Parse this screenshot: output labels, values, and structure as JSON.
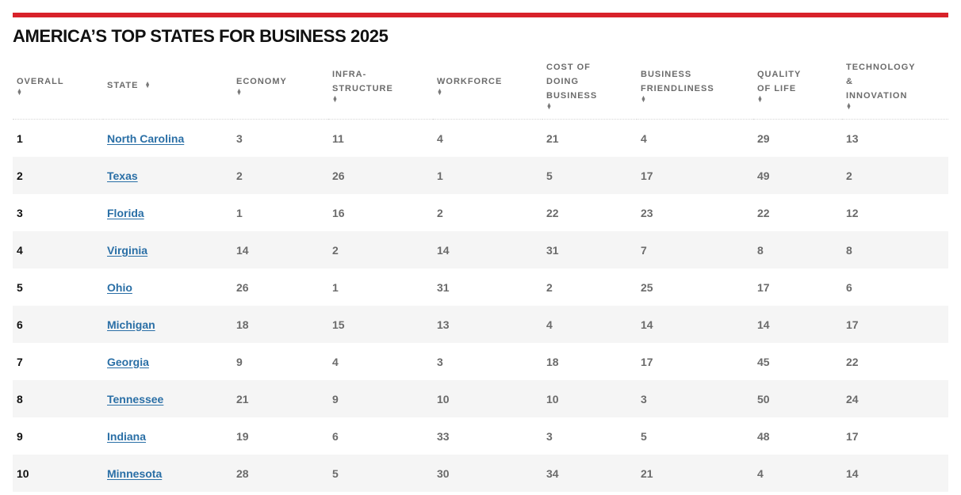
{
  "page": {
    "title": "AMERICA’S TOP STATES FOR BUSINESS 2025",
    "accent_color": "#d8222a",
    "link_color": "#2a6fa6"
  },
  "table": {
    "headers": {
      "overall": [
        "OVERALL"
      ],
      "state": [
        "STATE"
      ],
      "economy": [
        "ECONOMY"
      ],
      "infrastructure": [
        "INFRA-",
        "STRUCTURE"
      ],
      "workforce": [
        "WORKFORCE"
      ],
      "cost": [
        "COST OF",
        "DOING",
        "BUSINESS"
      ],
      "friendliness": [
        "BUSINESS",
        "FRIENDLINESS"
      ],
      "quality": [
        "QUALITY",
        "OF LIFE"
      ],
      "technology": [
        "TECHNOLOGY",
        "&",
        "INNOVATION"
      ]
    },
    "sort_icon": "sort-arrows-icon",
    "rows": [
      {
        "overall": "1",
        "state": "North Carolina",
        "economy": "3",
        "infrastructure": "11",
        "workforce": "4",
        "cost": "21",
        "friendliness": "4",
        "quality": "29",
        "technology": "13"
      },
      {
        "overall": "2",
        "state": "Texas",
        "economy": "2",
        "infrastructure": "26",
        "workforce": "1",
        "cost": "5",
        "friendliness": "17",
        "quality": "49",
        "technology": "2"
      },
      {
        "overall": "3",
        "state": "Florida",
        "economy": "1",
        "infrastructure": "16",
        "workforce": "2",
        "cost": "22",
        "friendliness": "23",
        "quality": "22",
        "technology": "12"
      },
      {
        "overall": "4",
        "state": "Virginia",
        "economy": "14",
        "infrastructure": "2",
        "workforce": "14",
        "cost": "31",
        "friendliness": "7",
        "quality": "8",
        "technology": "8"
      },
      {
        "overall": "5",
        "state": "Ohio",
        "economy": "26",
        "infrastructure": "1",
        "workforce": "31",
        "cost": "2",
        "friendliness": "25",
        "quality": "17",
        "technology": "6"
      },
      {
        "overall": "6",
        "state": "Michigan",
        "economy": "18",
        "infrastructure": "15",
        "workforce": "13",
        "cost": "4",
        "friendliness": "14",
        "quality": "14",
        "technology": "17"
      },
      {
        "overall": "7",
        "state": "Georgia",
        "economy": "9",
        "infrastructure": "4",
        "workforce": "3",
        "cost": "18",
        "friendliness": "17",
        "quality": "45",
        "technology": "22"
      },
      {
        "overall": "8",
        "state": "Tennessee",
        "economy": "21",
        "infrastructure": "9",
        "workforce": "10",
        "cost": "10",
        "friendliness": "3",
        "quality": "50",
        "technology": "24"
      },
      {
        "overall": "9",
        "state": "Indiana",
        "economy": "19",
        "infrastructure": "6",
        "workforce": "33",
        "cost": "3",
        "friendliness": "5",
        "quality": "48",
        "technology": "17"
      },
      {
        "overall": "10",
        "state": "Minnesota",
        "economy": "28",
        "infrastructure": "5",
        "workforce": "30",
        "cost": "34",
        "friendliness": "21",
        "quality": "4",
        "technology": "14"
      }
    ]
  }
}
